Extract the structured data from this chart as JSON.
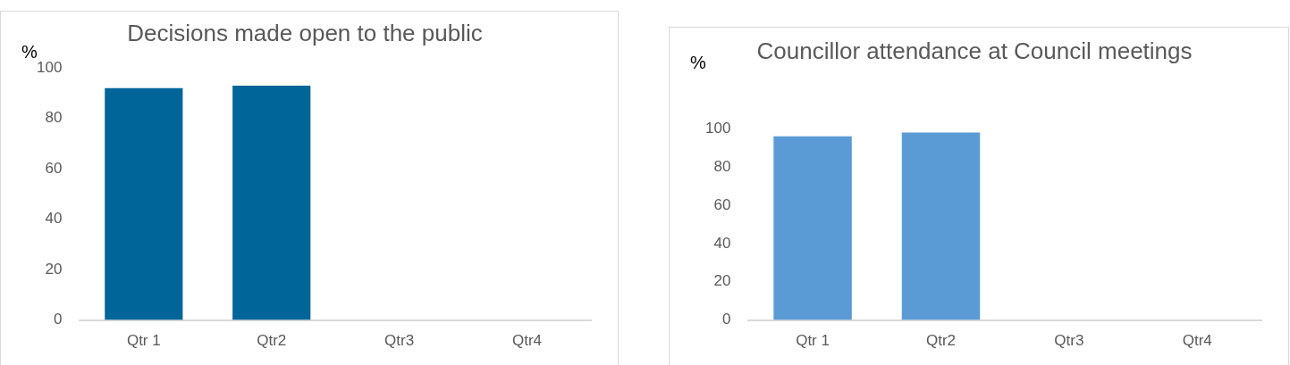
{
  "chart_data": [
    {
      "type": "bar",
      "title": "Decisions made open to the public",
      "ylabel": "%",
      "categories": [
        "Qtr 1",
        "Qtr2",
        "Qtr3",
        "Qtr4"
      ],
      "values": [
        92,
        93,
        null,
        null
      ],
      "color": "#006699",
      "ylim": [
        0,
        100
      ],
      "yticks": [
        0,
        20,
        40,
        60,
        80,
        100
      ],
      "grid": false,
      "legend": false
    },
    {
      "type": "bar",
      "title": "Councillor attendance at Council meetings",
      "ylabel": "%",
      "categories": [
        "Qtr 1",
        "Qtr2",
        "Qtr3",
        "Qtr4"
      ],
      "values": [
        96,
        98,
        null,
        null
      ],
      "color": "#5b9bd5",
      "ylim": [
        0,
        100
      ],
      "yticks": [
        0,
        20,
        40,
        60,
        80,
        100
      ],
      "grid": false,
      "legend": false
    }
  ]
}
